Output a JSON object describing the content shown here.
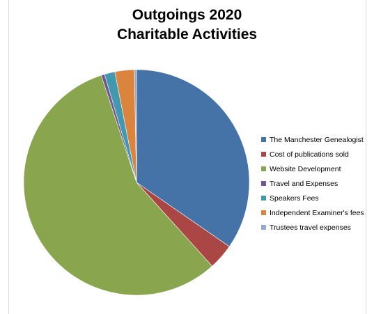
{
  "chart_data": {
    "type": "pie",
    "title_line1": "Outgoings  2020",
    "title_line2": "Charitable Activities",
    "legend_position": "right",
    "slices": [
      {
        "label": "The Manchester Genealogist",
        "value": 34.8,
        "color": "#4572a7"
      },
      {
        "label": "Cost of publications sold",
        "value": 3.7,
        "color": "#aa4643"
      },
      {
        "label": "Website Development",
        "value": 56.9,
        "color": "#89a54e"
      },
      {
        "label": "Travel and Expenses",
        "value": 0.5,
        "color": "#71588f"
      },
      {
        "label": "Speakers Fees",
        "value": 1.5,
        "color": "#4198af"
      },
      {
        "label": "Independent Examiner's fees",
        "value": 2.8,
        "color": "#db843d"
      },
      {
        "label": "Trustees travel expenses",
        "value": 0.3,
        "color": "#93a9cf"
      }
    ]
  }
}
